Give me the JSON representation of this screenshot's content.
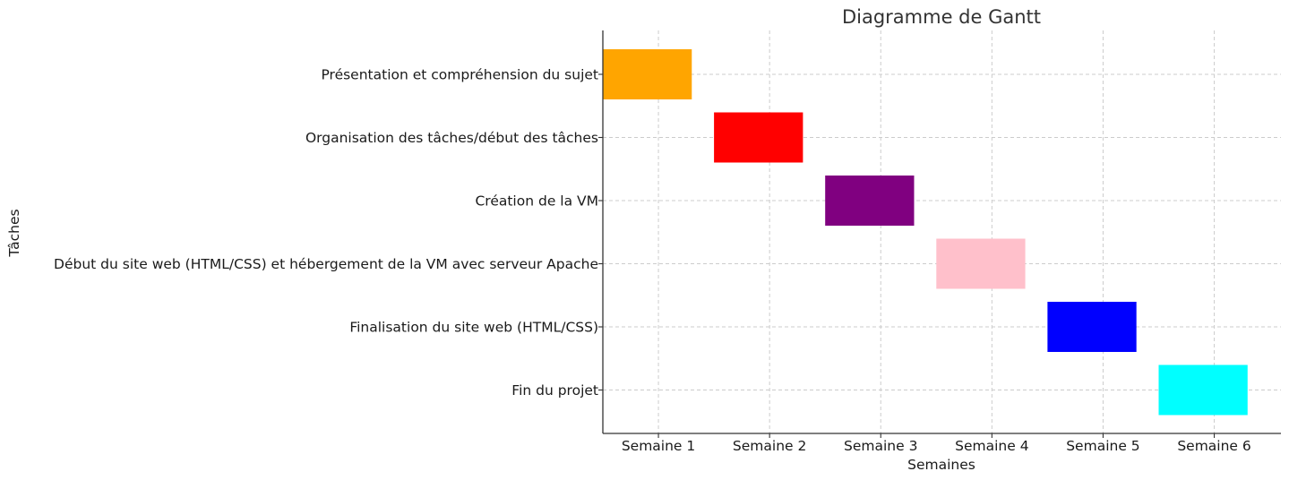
{
  "chart_data": {
    "type": "gantt",
    "title": "Diagramme de Gantt",
    "xlabel": "Semaines",
    "ylabel": "Tâches",
    "categories": [
      "Semaine 1",
      "Semaine 2",
      "Semaine 3",
      "Semaine 4",
      "Semaine 5",
      "Semaine 6"
    ],
    "xlim": [
      0.5,
      6.6
    ],
    "grid": true,
    "tasks": [
      {
        "label": "Présentation et compréhension du sujet",
        "start": 0.5,
        "end": 1.3,
        "color": "#FFA500"
      },
      {
        "label": "Organisation des tâches/début des tâches",
        "start": 1.5,
        "end": 2.3,
        "color": "#FF0000"
      },
      {
        "label": "Création de la VM",
        "start": 2.5,
        "end": 3.3,
        "color": "#800080"
      },
      {
        "label": "Début du site web (HTML/CSS) et hébergement de la VM avec serveur Apache",
        "start": 3.5,
        "end": 4.3,
        "color": "#FFC0CB"
      },
      {
        "label": "Finalisation du site web (HTML/CSS)",
        "start": 4.5,
        "end": 5.3,
        "color": "#0000FF"
      },
      {
        "label": "Fin du projet",
        "start": 5.5,
        "end": 6.3,
        "color": "#00FFFF"
      }
    ]
  }
}
